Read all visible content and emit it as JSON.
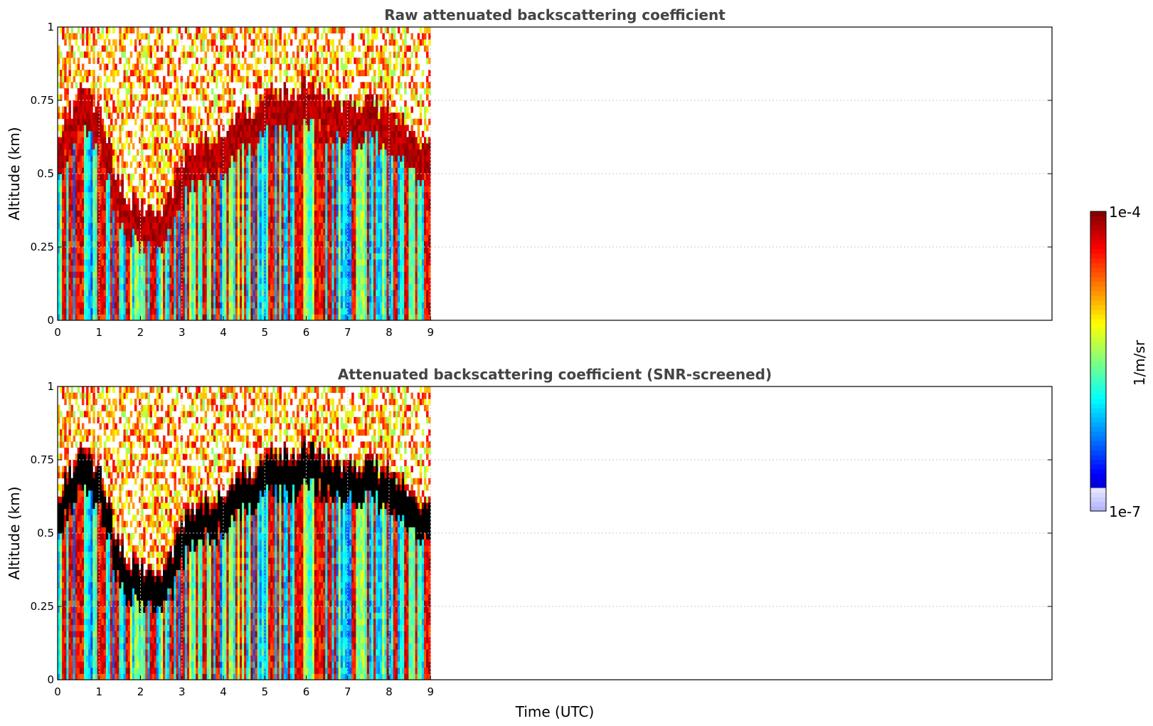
{
  "chart_data": [
    {
      "type": "heatmap",
      "title": "Raw attenuated backscattering coefficient",
      "xlabel": "",
      "ylabel": "Altitude (km)",
      "xlim": [
        0,
        24
      ],
      "ylim": [
        0,
        1
      ],
      "xticks": [
        "0",
        "1",
        "2",
        "3",
        "4",
        "5",
        "6",
        "7",
        "8",
        "9"
      ],
      "yticks": [
        "0",
        "0.25",
        "0.5",
        "0.75",
        "1"
      ],
      "data_extent_x": [
        0,
        9
      ],
      "grid": true,
      "screened": false,
      "profile_height_km": [
        0.55,
        0.7,
        0.62,
        0.35,
        0.3,
        0.28,
        0.45,
        0.52,
        0.55,
        0.62,
        0.68,
        0.7,
        0.65,
        0.65,
        0.62,
        0.55,
        0.5
      ],
      "profile_time_utc": [
        0,
        0.5,
        1.0,
        1.5,
        2.0,
        2.5,
        3.0,
        3.5,
        4.0,
        4.5,
        5.0,
        6.0,
        7.0,
        7.5,
        8.0,
        8.5,
        9.0
      ]
    },
    {
      "type": "heatmap",
      "title": "Attenuated backscattering coefficient (SNR-screened)",
      "xlabel": "Time (UTC)",
      "ylabel": "Altitude (km)",
      "xlim": [
        0,
        24
      ],
      "ylim": [
        0,
        1
      ],
      "xticks": [
        "0",
        "1",
        "2",
        "3",
        "4",
        "5",
        "6",
        "7",
        "8",
        "9"
      ],
      "yticks": [
        "0",
        "0.25",
        "0.5",
        "0.75",
        "1"
      ],
      "data_extent_x": [
        0,
        9
      ],
      "grid": true,
      "screened": true,
      "profile_height_km": [
        0.55,
        0.7,
        0.62,
        0.35,
        0.3,
        0.28,
        0.45,
        0.52,
        0.55,
        0.62,
        0.68,
        0.7,
        0.65,
        0.65,
        0.62,
        0.55,
        0.5
      ],
      "profile_time_utc": [
        0,
        0.5,
        1.0,
        1.5,
        2.0,
        2.5,
        3.0,
        3.5,
        4.0,
        4.5,
        5.0,
        6.0,
        7.0,
        7.5,
        8.0,
        8.5,
        9.0
      ]
    }
  ],
  "colorbar": {
    "label": "1/m/sr",
    "max_label": "1e-4",
    "min_label": "1e-7",
    "colormap": "jet",
    "scale": "log",
    "placement": "right"
  },
  "colors": {
    "title": "#444444",
    "grid": "#c8c8c8",
    "cloud_core_screened": "#000000"
  }
}
